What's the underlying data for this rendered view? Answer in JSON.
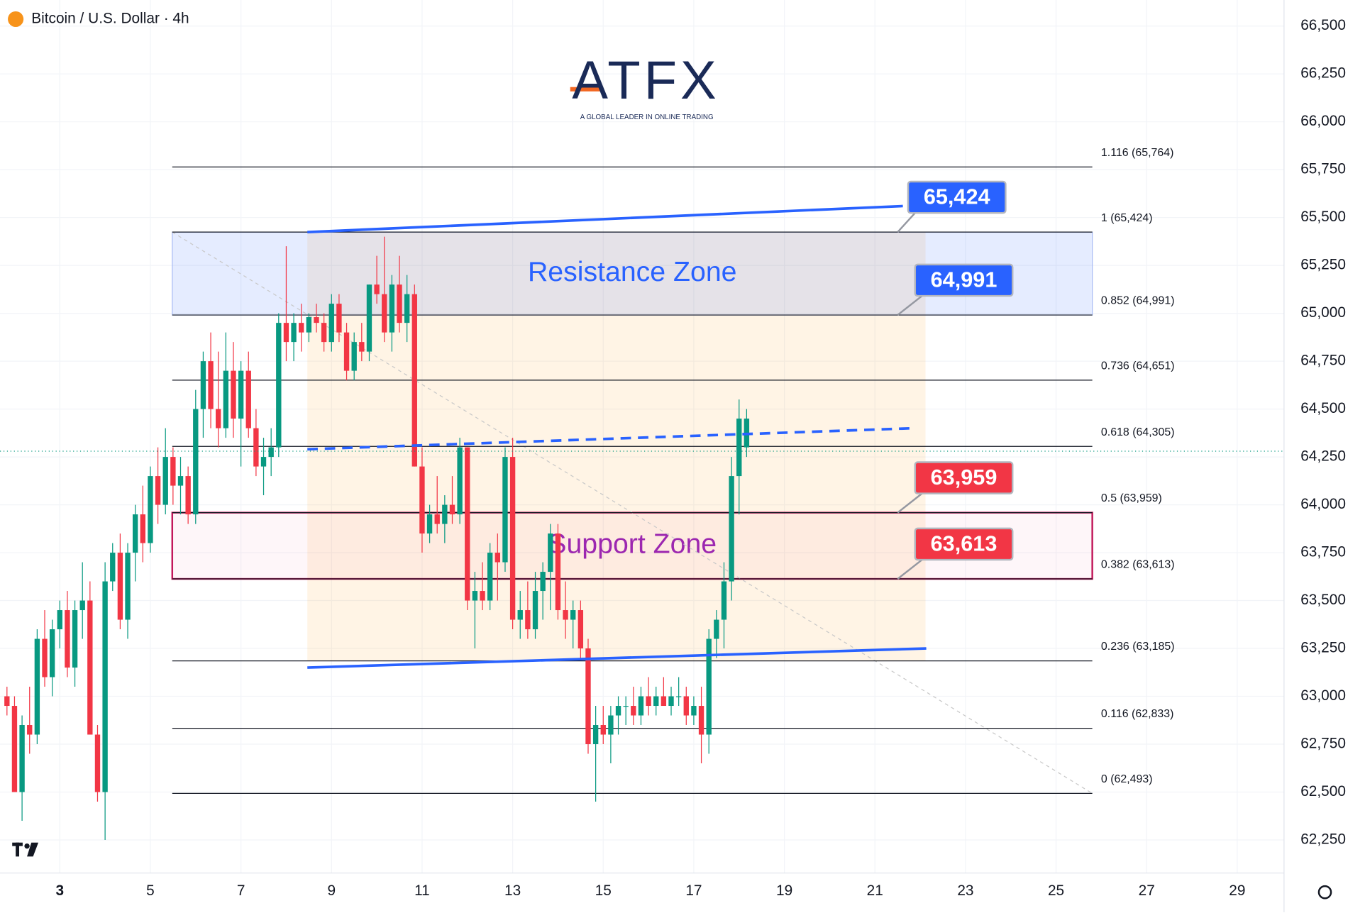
{
  "chart_data": {
    "type": "candlestick",
    "title": "Bitcoin / U.S. Dollar · 4h",
    "logo": {
      "name": "ATFX",
      "tagline": "A GLOBAL LEADER IN ONLINE TRADING"
    },
    "ylim": [
      62077,
      66636
    ],
    "xlim": [
      -0.92,
      169.2
    ],
    "yticks": [
      {
        "value": 62250,
        "label": "62,250"
      },
      {
        "value": 62500,
        "label": "62,500"
      },
      {
        "value": 62750,
        "label": "62,750"
      },
      {
        "value": 63000,
        "label": "63,000"
      },
      {
        "value": 63250,
        "label": "63,250"
      },
      {
        "value": 63500,
        "label": "63,500"
      },
      {
        "value": 63750,
        "label": "63,750"
      },
      {
        "value": 64000,
        "label": "64,000"
      },
      {
        "value": 64250,
        "label": "64,250"
      },
      {
        "value": 64500,
        "label": "64,500"
      },
      {
        "value": 64750,
        "label": "64,750"
      },
      {
        "value": 65000,
        "label": "65,000"
      },
      {
        "value": 65250,
        "label": "65,250"
      },
      {
        "value": 65500,
        "label": "65,500"
      },
      {
        "value": 65750,
        "label": "65,750"
      },
      {
        "value": 66000,
        "label": "66,000"
      },
      {
        "value": 66250,
        "label": "66,250"
      },
      {
        "value": 66500,
        "label": "66,500"
      }
    ],
    "xticks": [
      {
        "value": 7,
        "label": "3"
      },
      {
        "value": 19,
        "label": "5"
      },
      {
        "value": 31,
        "label": "7"
      },
      {
        "value": 43,
        "label": "9"
      },
      {
        "value": 55,
        "label": "11"
      },
      {
        "value": 67,
        "label": "13"
      },
      {
        "value": 79,
        "label": "15"
      },
      {
        "value": 91,
        "label": "17"
      },
      {
        "value": 103,
        "label": "19"
      },
      {
        "value": 115,
        "label": "21"
      },
      {
        "value": 127,
        "label": "23"
      },
      {
        "value": 139,
        "label": "25"
      },
      {
        "value": 151,
        "label": "27"
      },
      {
        "value": 163,
        "label": "29"
      }
    ],
    "grid": true,
    "up_color": "#089981",
    "down_color": "#f23645",
    "last_price": 64280,
    "ohlc": [
      [
        63000,
        63050,
        62900,
        62950
      ],
      [
        62950,
        63000,
        62500,
        62500
      ],
      [
        62500,
        62900,
        62350,
        62850
      ],
      [
        62850,
        63050,
        62700,
        62800
      ],
      [
        62800,
        63350,
        62750,
        63300
      ],
      [
        63300,
        63450,
        63050,
        63100
      ],
      [
        63100,
        63400,
        63000,
        63350
      ],
      [
        63350,
        63500,
        63250,
        63450
      ],
      [
        63450,
        63550,
        63100,
        63150
      ],
      [
        63150,
        63500,
        63050,
        63450
      ],
      [
        63450,
        63700,
        63300,
        63500
      ],
      [
        63500,
        63600,
        62800,
        62800
      ],
      [
        62800,
        62850,
        62450,
        62500
      ],
      [
        62500,
        63700,
        62250,
        63600
      ],
      [
        63600,
        63800,
        63550,
        63750
      ],
      [
        63750,
        63850,
        63350,
        63400
      ],
      [
        63400,
        63800,
        63300,
        63750
      ],
      [
        63750,
        64000,
        63600,
        63950
      ],
      [
        63950,
        64100,
        63700,
        63800
      ],
      [
        63800,
        64200,
        63750,
        64150
      ],
      [
        64150,
        64300,
        63900,
        64000
      ],
      [
        64000,
        64400,
        63950,
        64250
      ],
      [
        64250,
        64300,
        64000,
        64100
      ],
      [
        64100,
        64250,
        63950,
        64150
      ],
      [
        64150,
        64200,
        63900,
        63950
      ],
      [
        63950,
        64600,
        63900,
        64500
      ],
      [
        64500,
        64800,
        64350,
        64750
      ],
      [
        64750,
        64900,
        64400,
        64500
      ],
      [
        64500,
        64800,
        64300,
        64400
      ],
      [
        64400,
        64900,
        64350,
        64700
      ],
      [
        64700,
        64850,
        64350,
        64450
      ],
      [
        64450,
        64750,
        64200,
        64700
      ],
      [
        64700,
        64800,
        64350,
        64400
      ],
      [
        64400,
        64500,
        64150,
        64200
      ],
      [
        64200,
        64350,
        64050,
        64250
      ],
      [
        64250,
        64400,
        64150,
        64300
      ],
      [
        64300,
        65000,
        64250,
        64950
      ],
      [
        64950,
        65350,
        64750,
        64850
      ],
      [
        64850,
        65000,
        64750,
        64950
      ],
      [
        64950,
        65050,
        64800,
        64900
      ],
      [
        64900,
        65000,
        64850,
        64980
      ],
      [
        64980,
        65050,
        64900,
        64950
      ],
      [
        64950,
        65000,
        64800,
        64850
      ],
      [
        64850,
        65100,
        64800,
        65050
      ],
      [
        65050,
        65100,
        64850,
        64900
      ],
      [
        64900,
        64950,
        64650,
        64700
      ],
      [
        64700,
        64900,
        64650,
        64850
      ],
      [
        64850,
        64950,
        64750,
        64800
      ],
      [
        64800,
        65150,
        64750,
        65150
      ],
      [
        65150,
        65300,
        65050,
        65100
      ],
      [
        65100,
        65400,
        64850,
        64900
      ],
      [
        64900,
        65200,
        64800,
        65150
      ],
      [
        65150,
        65300,
        64900,
        64950
      ],
      [
        64950,
        65200,
        64850,
        65100
      ],
      [
        65100,
        65150,
        64200,
        64200
      ],
      [
        64200,
        64300,
        63750,
        63850
      ],
      [
        63850,
        64000,
        63800,
        63950
      ],
      [
        63950,
        64150,
        63850,
        63900
      ],
      [
        63900,
        64050,
        63800,
        64000
      ],
      [
        64000,
        64150,
        63900,
        63950
      ],
      [
        63950,
        64350,
        63900,
        64300
      ],
      [
        64300,
        64300,
        63450,
        63500
      ],
      [
        63500,
        63650,
        63250,
        63550
      ],
      [
        63550,
        63700,
        63450,
        63500
      ],
      [
        63500,
        63800,
        63450,
        63750
      ],
      [
        63750,
        63850,
        63500,
        63700
      ],
      [
        63700,
        64300,
        63650,
        64250
      ],
      [
        64250,
        64350,
        63350,
        63400
      ],
      [
        63400,
        63550,
        63300,
        63450
      ],
      [
        63450,
        63600,
        63300,
        63350
      ],
      [
        63350,
        63650,
        63300,
        63550
      ],
      [
        63550,
        63700,
        63400,
        63650
      ],
      [
        63650,
        63900,
        63450,
        63850
      ],
      [
        63850,
        63900,
        63400,
        63450
      ],
      [
        63450,
        63600,
        63300,
        63400
      ],
      [
        63400,
        63500,
        63250,
        63450
      ],
      [
        63450,
        63500,
        63200,
        63250
      ],
      [
        63250,
        63300,
        62700,
        62750
      ],
      [
        62750,
        62950,
        62450,
        62850
      ],
      [
        62850,
        62950,
        62750,
        62800
      ],
      [
        62800,
        62950,
        62650,
        62900
      ],
      [
        62900,
        63000,
        62800,
        62950
      ],
      [
        62950,
        63000,
        62850,
        62950
      ],
      [
        62950,
        63050,
        62850,
        62900
      ],
      [
        62900,
        63050,
        62850,
        63000
      ],
      [
        63000,
        63100,
        62900,
        62950
      ],
      [
        62950,
        63050,
        62900,
        63000
      ],
      [
        63000,
        63100,
        62950,
        62950
      ],
      [
        62950,
        63050,
        62900,
        63000
      ],
      [
        63000,
        63100,
        62950,
        63000
      ],
      [
        63000,
        63050,
        62850,
        62900
      ],
      [
        62900,
        63000,
        62850,
        62950
      ],
      [
        62950,
        63050,
        62650,
        62800
      ],
      [
        62800,
        63350,
        62700,
        63300
      ],
      [
        63300,
        63450,
        63200,
        63400
      ],
      [
        63400,
        63700,
        63250,
        63600
      ],
      [
        63600,
        64250,
        63500,
        64150
      ],
      [
        64150,
        64550,
        63950,
        64450
      ],
      [
        64300,
        64500,
        64250,
        64450
      ]
    ],
    "fib": {
      "x": [
        21.9,
        143.8
      ],
      "levels": [
        {
          "value": 65764,
          "label": "1.116 (65,764)"
        },
        {
          "value": 65424,
          "label": "1 (65,424)"
        },
        {
          "value": 64991,
          "label": "0.852 (64,991)"
        },
        {
          "value": 64651,
          "label": "0.736 (64,651)"
        },
        {
          "value": 64305,
          "label": "0.618 (64,305)"
        },
        {
          "value": 63959,
          "label": "0.5 (63,959)"
        },
        {
          "value": 63613,
          "label": "0.382 (63,613)"
        },
        {
          "value": 63185,
          "label": "0.236 (63,185)"
        },
        {
          "value": 62833,
          "label": "0.116 (62,833)"
        },
        {
          "value": 62493,
          "label": "0 (62,493)"
        }
      ]
    },
    "range_box": {
      "x": [
        39.8,
        121.7
      ],
      "y": [
        63185,
        65424
      ]
    },
    "zones": [
      {
        "label": "Resistance Zone",
        "range": [
          64991,
          65424
        ],
        "color": "#2962ff"
      },
      {
        "label": "Support Zone",
        "range": [
          63613,
          63959
        ],
        "color": "#9c27b0"
      }
    ],
    "price_tags": [
      {
        "value": 65424,
        "label": "65,424",
        "color": "#2962ff"
      },
      {
        "value": 64991,
        "label": "64,991",
        "color": "#2962ff"
      },
      {
        "value": 63959,
        "label": "63,959",
        "color": "#f23645"
      },
      {
        "value": 63613,
        "label": "63,613",
        "color": "#f23645"
      }
    ],
    "trendlines": [
      {
        "points": [
          [
            39.8,
            65424
          ],
          [
            118.7,
            65560
          ]
        ],
        "color": "#2962ff",
        "dashed": false
      },
      {
        "points": [
          [
            39.8,
            64290
          ],
          [
            120.2,
            64400
          ]
        ],
        "color": "#2962ff",
        "dashed": true
      },
      {
        "points": [
          [
            39.8,
            63150
          ],
          [
            121.8,
            63250
          ]
        ],
        "color": "#2962ff",
        "dashed": false
      }
    ]
  }
}
